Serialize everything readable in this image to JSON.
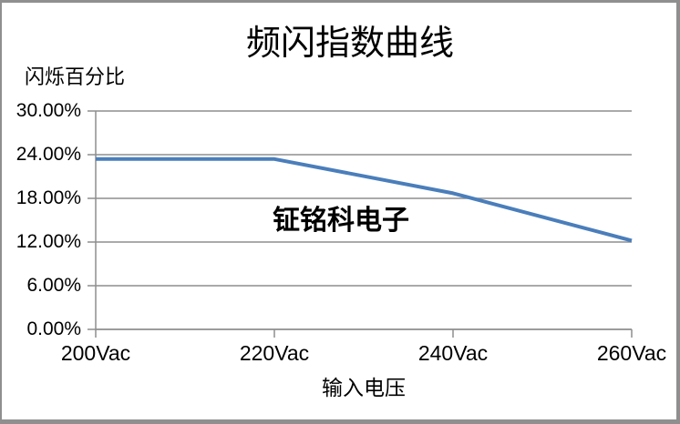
{
  "window": {
    "background": "#ffffff",
    "border_color": "#8f8f8f"
  },
  "chart_data": {
    "type": "line",
    "title": "频闪指数曲线",
    "ylabel": "闪烁百分比",
    "xlabel": "输入电压",
    "watermark": "钲铭科电子",
    "categories": [
      "200Vac",
      "220Vac",
      "240Vac",
      "260Vac"
    ],
    "x_values_vac": [
      200,
      220,
      240,
      260
    ],
    "series": [
      {
        "color": "#4a7ebb",
        "values_percent": [
          23.4,
          23.4,
          18.7,
          12.2
        ]
      }
    ],
    "y_ticks": [
      {
        "label": "30.00%",
        "value": 30
      },
      {
        "label": "24.00%",
        "value": 24
      },
      {
        "label": "18.00%",
        "value": 18
      },
      {
        "label": "12.00%",
        "value": 12
      },
      {
        "label": "6.00%",
        "value": 6
      },
      {
        "label": "0.00%",
        "value": 0
      }
    ],
    "ylim": [
      0,
      30
    ],
    "grid": "horizontal",
    "legend": "none",
    "axis_color": "#8e8e8e"
  }
}
